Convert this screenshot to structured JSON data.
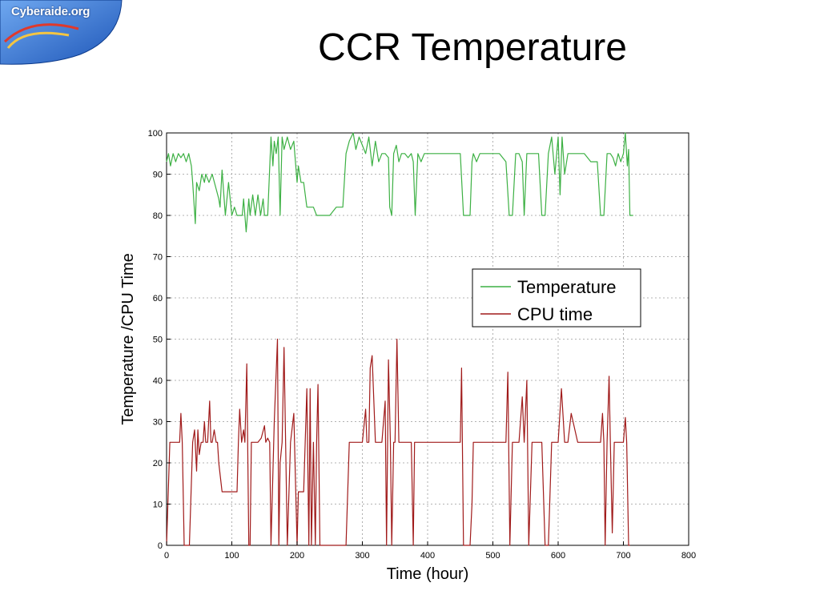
{
  "logo": {
    "text": "Cyberaide.org"
  },
  "slide": {
    "title": "CCR Temperature"
  },
  "colors": {
    "temperature": "#3cb043",
    "cpu": "#a01a1a",
    "grid": "#9a9a9a"
  },
  "chart_data": {
    "type": "line",
    "title": "",
    "xlabel": "Time (hour)",
    "ylabel": "Temperature /CPU Time",
    "xlim": [
      0,
      800
    ],
    "ylim": [
      0,
      100
    ],
    "xticks": [
      0,
      100,
      200,
      300,
      400,
      500,
      600,
      700,
      800
    ],
    "yticks": [
      0,
      10,
      20,
      30,
      40,
      50,
      60,
      70,
      80,
      90,
      100
    ],
    "grid": true,
    "legend_position": "center-right",
    "series": [
      {
        "name": "Temperature",
        "color": "#3cb043",
        "x": [
          0,
          3,
          6,
          10,
          14,
          18,
          22,
          26,
          30,
          34,
          38,
          40,
          44,
          46,
          50,
          54,
          58,
          60,
          65,
          70,
          75,
          80,
          82,
          85,
          90,
          95,
          100,
          104,
          108,
          112,
          116,
          118,
          122,
          126,
          128,
          132,
          136,
          140,
          144,
          148,
          150,
          155,
          160,
          163,
          165,
          168,
          171,
          174,
          177,
          180,
          185,
          190,
          195,
          200,
          202,
          206,
          210,
          215,
          220,
          225,
          230,
          235,
          240,
          250,
          260,
          270,
          275,
          280,
          283,
          286,
          290,
          295,
          300,
          305,
          310,
          315,
          320,
          325,
          330,
          335,
          340,
          342,
          345,
          348,
          352,
          356,
          360,
          365,
          370,
          375,
          378,
          381,
          385,
          390,
          395,
          400,
          410,
          420,
          430,
          440,
          450,
          455,
          460,
          465,
          468,
          470,
          475,
          480,
          490,
          500,
          510,
          520,
          525,
          530,
          535,
          540,
          545,
          548,
          552,
          556,
          560,
          570,
          575,
          580,
          585,
          590,
          595,
          600,
          603,
          606,
          610,
          615,
          620,
          625,
          630,
          640,
          650,
          660,
          665,
          670,
          675,
          680,
          684,
          688,
          692,
          696,
          700,
          703,
          706,
          708,
          710,
          715
        ],
        "values": [
          93,
          95,
          92,
          95,
          93,
          95,
          94,
          95,
          93,
          95,
          92,
          88,
          78,
          88,
          86,
          90,
          88,
          90,
          88,
          90,
          87,
          84,
          82,
          91,
          80,
          88,
          80,
          82,
          80,
          80,
          80,
          84,
          76,
          84,
          80,
          85,
          80,
          85,
          80,
          84,
          80,
          80,
          99,
          92,
          98,
          95,
          99,
          80,
          99,
          96,
          99,
          96,
          98,
          88,
          92,
          88,
          88,
          82,
          82,
          82,
          80,
          80,
          80,
          80,
          82,
          82,
          95,
          98,
          99,
          100,
          96,
          99,
          97,
          95,
          99,
          92,
          98,
          93,
          95,
          95,
          94,
          82,
          80,
          95,
          97,
          93,
          95,
          95,
          94,
          95,
          93,
          80,
          95,
          93,
          95,
          95,
          95,
          95,
          95,
          95,
          95,
          80,
          80,
          80,
          93,
          95,
          93,
          95,
          95,
          95,
          95,
          93,
          80,
          80,
          95,
          95,
          93,
          80,
          95,
          95,
          95,
          95,
          80,
          80,
          95,
          99,
          90,
          99,
          85,
          99,
          90,
          95,
          95,
          95,
          95,
          95,
          93,
          93,
          80,
          80,
          95,
          95,
          94,
          92,
          95,
          93,
          95,
          100,
          92,
          96,
          80,
          80
        ]
      },
      {
        "name": "CPU time",
        "color": "#a01a1a",
        "x": [
          0,
          5,
          7,
          20,
          22,
          24,
          27,
          30,
          35,
          40,
          43,
          46,
          48,
          50,
          53,
          56,
          58,
          60,
          63,
          66,
          68,
          70,
          73,
          76,
          78,
          80,
          85,
          90,
          100,
          108,
          110,
          112,
          115,
          118,
          120,
          123,
          126,
          128,
          130,
          135,
          140,
          145,
          150,
          152,
          155,
          158,
          160,
          165,
          170,
          172,
          174,
          177,
          180,
          185,
          190,
          195,
          200,
          202,
          205,
          210,
          215,
          218,
          220,
          222,
          225,
          228,
          230,
          232,
          235,
          238,
          240,
          245,
          260,
          275,
          280,
          290,
          295,
          300,
          305,
          307,
          310,
          312,
          315,
          320,
          325,
          330,
          335,
          337,
          340,
          343,
          345,
          348,
          350,
          353,
          356,
          360,
          365,
          370,
          375,
          378,
          380,
          385,
          390,
          400,
          420,
          440,
          450,
          452,
          455,
          460,
          465,
          468,
          470,
          480,
          490,
          500,
          510,
          520,
          523,
          526,
          530,
          535,
          540,
          545,
          548,
          552,
          555,
          560,
          565,
          570,
          575,
          580,
          585,
          590,
          595,
          600,
          605,
          610,
          615,
          620,
          630,
          640,
          650,
          660,
          665,
          668,
          670,
          672,
          675,
          678,
          680,
          683,
          686,
          688,
          692,
          695,
          698,
          700,
          703,
          705,
          708,
          710
        ],
        "values": [
          0,
          25,
          25,
          25,
          32,
          25,
          0,
          0,
          0,
          25,
          28,
          18,
          28,
          22,
          25,
          25,
          30,
          25,
          25,
          35,
          25,
          25,
          28,
          25,
          25,
          20,
          13,
          13,
          13,
          13,
          25,
          33,
          25,
          28,
          25,
          44,
          0,
          0,
          25,
          25,
          25,
          26,
          29,
          25,
          26,
          25,
          0,
          30,
          50,
          0,
          20,
          25,
          48,
          0,
          25,
          32,
          0,
          13,
          13,
          13,
          38,
          0,
          38,
          0,
          25,
          0,
          25,
          39,
          0,
          0,
          0,
          0,
          0,
          0,
          25,
          25,
          25,
          25,
          33,
          25,
          25,
          43,
          46,
          25,
          25,
          25,
          35,
          0,
          45,
          25,
          0,
          25,
          25,
          50,
          25,
          25,
          25,
          25,
          25,
          0,
          25,
          25,
          25,
          25,
          25,
          25,
          25,
          43,
          0,
          0,
          0,
          10,
          25,
          25,
          25,
          25,
          25,
          25,
          42,
          0,
          25,
          25,
          25,
          36,
          25,
          40,
          0,
          25,
          25,
          25,
          25,
          0,
          0,
          25,
          25,
          25,
          38,
          25,
          25,
          32,
          25,
          25,
          25,
          25,
          25,
          32,
          25,
          0,
          25,
          41,
          25,
          3,
          25,
          25,
          25,
          25,
          25,
          25,
          31,
          25,
          0,
          0
        ]
      }
    ]
  }
}
